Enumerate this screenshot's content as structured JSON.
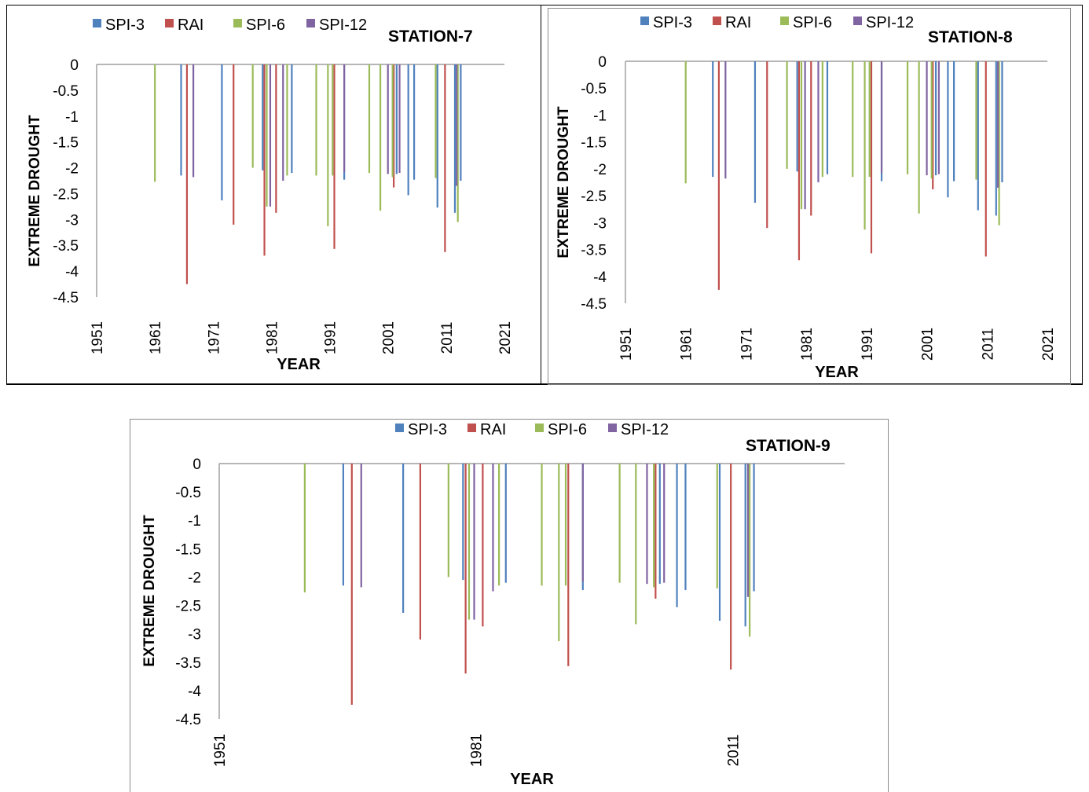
{
  "colors": {
    "SPI-3": "#4f81bd",
    "RAI": "#c0504d",
    "SPI-6": "#9bbb59",
    "SPI-12": "#8064a2"
  },
  "chart_data": [
    {
      "type": "bar",
      "title": "STATION-7",
      "xlabel": "YEAR",
      "ylabel": "EXTREME DROUGHT",
      "ylim": [
        -4.5,
        0
      ],
      "yticks": [
        "0",
        "-0.5",
        "-1",
        "-1.5",
        "-2",
        "-2.5",
        "-3",
        "-3.5",
        "-4",
        "-4.5"
      ],
      "xticks": [
        "1951",
        "1961",
        "1971",
        "1981",
        "1991",
        "2001",
        "2011",
        "2021"
      ],
      "legend_order": [
        "SPI-3",
        "RAI",
        "SPI-6",
        "SPI-12"
      ],
      "legend_position": "top",
      "series": [
        {
          "name": "SPI-3",
          "points": [
            [
              1965.5,
              -2.15
            ],
            [
              1972.5,
              -2.63
            ],
            [
              1979.5,
              -2.05
            ],
            [
              1984.5,
              -2.1
            ],
            [
              1993.5,
              -2.23
            ],
            [
              2002.5,
              -2.12
            ],
            [
              2004.5,
              -2.53
            ],
            [
              2005.5,
              -2.23
            ],
            [
              2009.5,
              -2.77
            ],
            [
              2012.5,
              -2.87
            ],
            [
              2013.5,
              -2.25
            ]
          ]
        },
        {
          "name": "RAI",
          "points": [
            [
              1966.5,
              -4.25
            ],
            [
              1974.5,
              -3.1
            ],
            [
              1979.8,
              -3.7
            ],
            [
              1981.8,
              -2.87
            ],
            [
              1991.8,
              -3.57
            ],
            [
              2002,
              -2.38
            ],
            [
              2010.8,
              -3.63
            ]
          ]
        },
        {
          "name": "SPI-6",
          "points": [
            [
              1961,
              -2.27
            ],
            [
              1977.8,
              -2
            ],
            [
              1980.2,
              -2.75
            ],
            [
              1983.7,
              -2.15
            ],
            [
              1988.7,
              -2.15
            ],
            [
              1990.7,
              -3.13
            ],
            [
              1991.5,
              -2.15
            ],
            [
              1997.8,
              -2.1
            ],
            [
              1999.7,
              -2.83
            ],
            [
              2001.8,
              -2.18
            ],
            [
              2009.2,
              -2.2
            ],
            [
              2013,
              -3.05
            ]
          ]
        },
        {
          "name": "SPI-12",
          "points": [
            [
              1967.6,
              -2.18
            ],
            [
              1980.8,
              -2.75
            ],
            [
              1983,
              -2.25
            ],
            [
              1993.5,
              -2.08
            ],
            [
              2001,
              -2.12
            ],
            [
              2003,
              -2.1
            ],
            [
              2012.8,
              -2.35
            ]
          ]
        }
      ]
    },
    {
      "type": "bar",
      "title": "STATION-8",
      "xlabel": "YEAR",
      "ylabel": "EXTREME DROUGHT",
      "ylim": [
        -4.5,
        0
      ],
      "yticks": [
        "0",
        "-0.5",
        "-1",
        "-1.5",
        "-2",
        "-2.5",
        "-3",
        "-3.5",
        "-4",
        "-4.5"
      ],
      "xticks": [
        "1951",
        "1961",
        "1971",
        "1981",
        "1991",
        "2001",
        "2011",
        "2021"
      ],
      "legend_order": [
        "SPI-3",
        "RAI",
        "SPI-6",
        "SPI-12"
      ],
      "legend_position": "top",
      "series": [
        {
          "name": "SPI-3",
          "points": [
            [
              1965.5,
              -2.15
            ],
            [
              1972.5,
              -2.63
            ],
            [
              1979.5,
              -2.05
            ],
            [
              1984.5,
              -2.1
            ],
            [
              1993.5,
              -2.23
            ],
            [
              2002.5,
              -2.12
            ],
            [
              2004.5,
              -2.53
            ],
            [
              2005.5,
              -2.23
            ],
            [
              2009.5,
              -2.77
            ],
            [
              2012.5,
              -2.87
            ],
            [
              2013.5,
              -2.25
            ]
          ]
        },
        {
          "name": "RAI",
          "points": [
            [
              1966.5,
              -4.25
            ],
            [
              1974.5,
              -3.1
            ],
            [
              1979.8,
              -3.7
            ],
            [
              1981.8,
              -2.87
            ],
            [
              1991.8,
              -3.57
            ],
            [
              2002,
              -2.38
            ],
            [
              2010.8,
              -3.63
            ]
          ]
        },
        {
          "name": "SPI-6",
          "points": [
            [
              1961,
              -2.27
            ],
            [
              1977.8,
              -2
            ],
            [
              1980.2,
              -2.75
            ],
            [
              1983.7,
              -2.15
            ],
            [
              1988.7,
              -2.15
            ],
            [
              1990.7,
              -3.13
            ],
            [
              1991.5,
              -2.15
            ],
            [
              1997.8,
              -2.1
            ],
            [
              1999.7,
              -2.83
            ],
            [
              2001.8,
              -2.18
            ],
            [
              2009.2,
              -2.2
            ],
            [
              2013,
              -3.05
            ]
          ]
        },
        {
          "name": "SPI-12",
          "points": [
            [
              1967.6,
              -2.18
            ],
            [
              1980.8,
              -2.75
            ],
            [
              1983,
              -2.25
            ],
            [
              1993.5,
              -2.08
            ],
            [
              2001,
              -2.12
            ],
            [
              2003,
              -2.1
            ],
            [
              2012.8,
              -2.35
            ]
          ]
        }
      ]
    },
    {
      "type": "bar",
      "title": "STATION-9",
      "xlabel": "YEAR",
      "ylabel": "EXTREME DROUGHT",
      "ylim": [
        -4.5,
        0
      ],
      "yticks": [
        "0",
        "-0.5",
        "-1",
        "-1.5",
        "-2",
        "-2.5",
        "-3",
        "-3.5",
        "-4",
        "-4.5"
      ],
      "xticks": [
        "1951",
        "1981",
        "2011"
      ],
      "legend_order": [
        "SPI-3",
        "RAI",
        "SPI-6",
        "SPI-12"
      ],
      "legend_position": "top",
      "series": [
        {
          "name": "SPI-3",
          "points": [
            [
              1965.5,
              -2.15
            ],
            [
              1972.5,
              -2.63
            ],
            [
              1979.5,
              -2.05
            ],
            [
              1984.5,
              -2.1
            ],
            [
              1993.5,
              -2.23
            ],
            [
              2002.5,
              -2.12
            ],
            [
              2004.5,
              -2.53
            ],
            [
              2005.5,
              -2.23
            ],
            [
              2009.5,
              -2.77
            ],
            [
              2012.5,
              -2.87
            ],
            [
              2013.5,
              -2.25
            ]
          ]
        },
        {
          "name": "RAI",
          "points": [
            [
              1966.5,
              -4.25
            ],
            [
              1974.5,
              -3.1
            ],
            [
              1979.8,
              -3.7
            ],
            [
              1981.8,
              -2.87
            ],
            [
              1991.8,
              -3.57
            ],
            [
              2002,
              -2.38
            ],
            [
              2010.8,
              -3.63
            ]
          ]
        },
        {
          "name": "SPI-6",
          "points": [
            [
              1961,
              -2.27
            ],
            [
              1977.8,
              -2
            ],
            [
              1980.2,
              -2.75
            ],
            [
              1983.7,
              -2.15
            ],
            [
              1988.7,
              -2.15
            ],
            [
              1990.7,
              -3.13
            ],
            [
              1991.5,
              -2.15
            ],
            [
              1997.8,
              -2.1
            ],
            [
              1999.7,
              -2.83
            ],
            [
              2001.8,
              -2.18
            ],
            [
              2009.2,
              -2.2
            ],
            [
              2013,
              -3.05
            ]
          ]
        },
        {
          "name": "SPI-12",
          "points": [
            [
              1967.6,
              -2.18
            ],
            [
              1980.8,
              -2.75
            ],
            [
              1983,
              -2.25
            ],
            [
              1993.5,
              -2.08
            ],
            [
              2001,
              -2.12
            ],
            [
              2003,
              -2.1
            ],
            [
              2012.8,
              -2.35
            ]
          ]
        }
      ]
    }
  ]
}
